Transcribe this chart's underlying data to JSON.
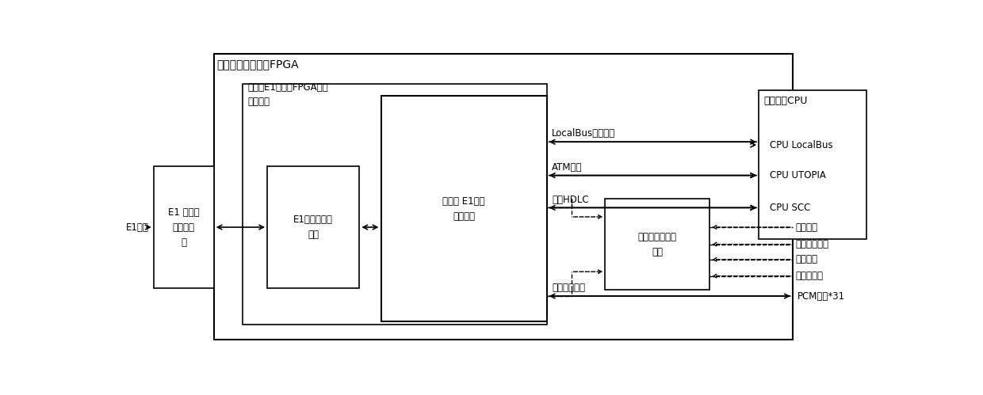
{
  "bg_color": "#ffffff",
  "lc": "#000000",
  "fig_w": 12.4,
  "fig_h": 4.99,
  "dpi": 100,
  "labels": {
    "fpga_outer": "现场可编程门阵列FPGA",
    "fpga_inner": "多模式E1接口的FPGA基本\n处理单元",
    "e1_interface": "E1接口",
    "e1_front_line1": "E1 接口前",
    "e1_front_line2": "端硬件电",
    "e1_front_line3": "路",
    "e1_frame_line1": "E1接口帧处理",
    "e1_frame_line2": "单元",
    "multimode_line1": "多模式 E1主控",
    "multimode_line2": "处理单元",
    "custom_bus_line1": "自定义总线适配",
    "custom_bus_line2": "单元",
    "cpu_title": "微处理器CPU",
    "localbus_label": "LocalBus读写控制",
    "atm_label": "ATM信元",
    "hdlc_label": "多路HDLC",
    "timeslot_label": "多路时隙数据",
    "cpu_localbus": "CPU LocalBus",
    "cpu_utopia": "CPU UTOPIA",
    "cpu_scc": "CPU SCC",
    "switch_signal": "开关信号",
    "low_speed": "低速串行信号",
    "ethernet": "以太网帧",
    "repeated_bus": "反复接总线",
    "pcm": "PCM话音*31"
  }
}
